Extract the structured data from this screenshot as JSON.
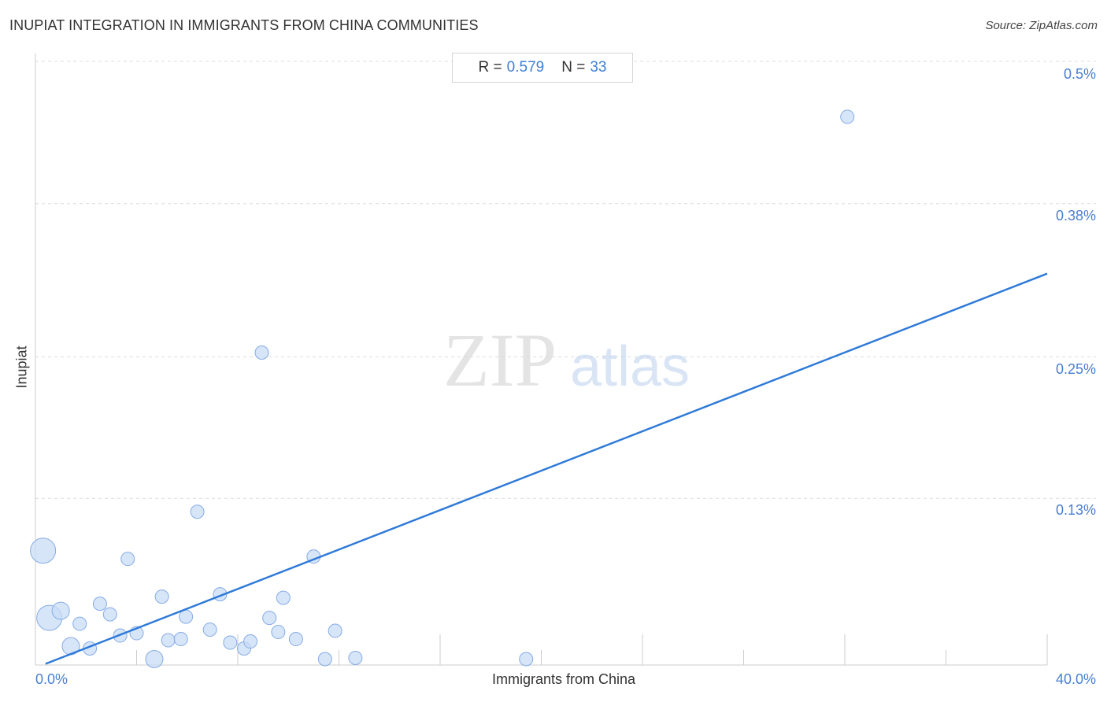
{
  "title": "INUPIAT INTEGRATION IN IMMIGRANTS FROM CHINA COMMUNITIES",
  "source": "Source: ZipAtlas.com",
  "stats": {
    "r_label": "R =",
    "r_value": "0.579",
    "n_label": "N =",
    "n_value": "33"
  },
  "watermark": {
    "zip": "ZIP",
    "atlas": "atlas"
  },
  "colors": {
    "accent": "#3f7ed6",
    "line": "#2f7ad8",
    "point_fill": "#c9dcf6",
    "point_stroke": "#86ace6"
  },
  "chart_data": {
    "type": "scatter",
    "title": "INUPIAT INTEGRATION IN IMMIGRANTS FROM CHINA COMMUNITIES",
    "xlabel": "Immigrants from China",
    "ylabel": "Inupiat",
    "xlim": [
      0,
      40
    ],
    "ylim": [
      0,
      0.5
    ],
    "x_tick_labels": [
      "0.0%",
      "40.0%"
    ],
    "y_ticks": [
      0.13,
      0.25,
      0.38,
      0.5
    ],
    "y_tick_labels": [
      "0.13%",
      "0.25%",
      "0.38%",
      "0.5%"
    ],
    "grid": true,
    "trendline": {
      "x": [
        0.4,
        40
      ],
      "y": [
        0.001,
        0.332
      ]
    },
    "points": [
      {
        "x": 0.3,
        "y": 0.097,
        "size": 3
      },
      {
        "x": 0.55,
        "y": 0.04,
        "size": 3
      },
      {
        "x": 1.0,
        "y": 0.046,
        "size": 2
      },
      {
        "x": 1.4,
        "y": 0.016,
        "size": 2
      },
      {
        "x": 1.75,
        "y": 0.035,
        "size": 1
      },
      {
        "x": 2.15,
        "y": 0.014,
        "size": 1
      },
      {
        "x": 2.55,
        "y": 0.052,
        "size": 1
      },
      {
        "x": 2.95,
        "y": 0.043,
        "size": 1
      },
      {
        "x": 3.35,
        "y": 0.025,
        "size": 1
      },
      {
        "x": 3.65,
        "y": 0.09,
        "size": 1
      },
      {
        "x": 4.0,
        "y": 0.027,
        "size": 1
      },
      {
        "x": 4.7,
        "y": 0.005,
        "size": 2
      },
      {
        "x": 5.0,
        "y": 0.058,
        "size": 1
      },
      {
        "x": 5.25,
        "y": 0.021,
        "size": 1
      },
      {
        "x": 5.75,
        "y": 0.022,
        "size": 1
      },
      {
        "x": 5.95,
        "y": 0.041,
        "size": 1
      },
      {
        "x": 6.4,
        "y": 0.13,
        "size": 1
      },
      {
        "x": 6.9,
        "y": 0.03,
        "size": 1
      },
      {
        "x": 7.3,
        "y": 0.06,
        "size": 1
      },
      {
        "x": 7.7,
        "y": 0.019,
        "size": 1
      },
      {
        "x": 8.25,
        "y": 0.014,
        "size": 1
      },
      {
        "x": 8.5,
        "y": 0.02,
        "size": 1
      },
      {
        "x": 8.95,
        "y": 0.265,
        "size": 1
      },
      {
        "x": 9.25,
        "y": 0.04,
        "size": 1
      },
      {
        "x": 9.6,
        "y": 0.028,
        "size": 1
      },
      {
        "x": 9.8,
        "y": 0.057,
        "size": 1
      },
      {
        "x": 10.3,
        "y": 0.022,
        "size": 1
      },
      {
        "x": 11.0,
        "y": 0.092,
        "size": 1
      },
      {
        "x": 11.45,
        "y": 0.005,
        "size": 1
      },
      {
        "x": 11.85,
        "y": 0.029,
        "size": 1
      },
      {
        "x": 12.65,
        "y": 0.006,
        "size": 1
      },
      {
        "x": 19.4,
        "y": 0.005,
        "size": 1
      },
      {
        "x": 32.1,
        "y": 0.465,
        "size": 1
      }
    ]
  }
}
